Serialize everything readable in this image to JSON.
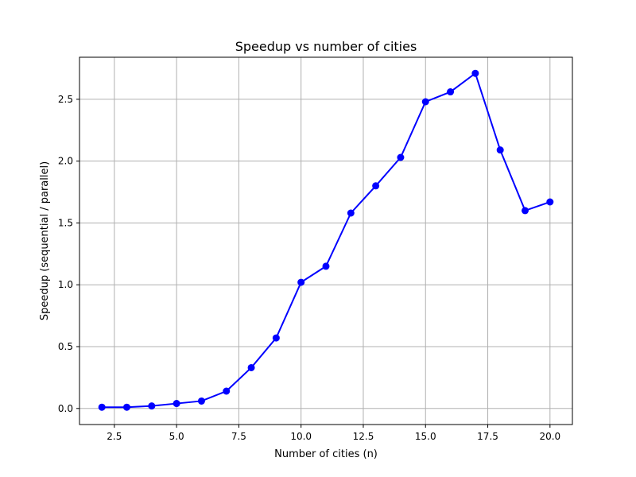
{
  "chart_data": {
    "type": "line",
    "title": "Speedup vs number of cities",
    "xlabel": "Number of cities (n)",
    "ylabel": "Speedup (sequential / parallel)",
    "xlim": [
      1.1,
      20.9
    ],
    "ylim": [
      -0.13,
      2.84
    ],
    "xticks": [
      2.5,
      5.0,
      7.5,
      10.0,
      12.5,
      15.0,
      17.5,
      20.0
    ],
    "xtick_labels": [
      "2.5",
      "5.0",
      "7.5",
      "10.0",
      "12.5",
      "15.0",
      "17.5",
      "20.0"
    ],
    "yticks": [
      0.0,
      0.5,
      1.0,
      1.5,
      2.0,
      2.5
    ],
    "ytick_labels": [
      "0.0",
      "0.5",
      "1.0",
      "1.5",
      "2.0",
      "2.5"
    ],
    "grid": true,
    "color": "#0000ff",
    "series": [
      {
        "x": [
          2,
          3,
          4,
          5,
          6,
          7,
          8,
          9,
          10,
          11,
          12,
          13,
          14,
          15,
          16,
          17,
          18,
          19,
          20
        ],
        "y": [
          0.01,
          0.01,
          0.02,
          0.04,
          0.06,
          0.14,
          0.33,
          0.57,
          1.02,
          1.15,
          1.58,
          1.8,
          2.03,
          2.48,
          2.56,
          2.71,
          2.09,
          1.6,
          1.67
        ]
      }
    ]
  }
}
